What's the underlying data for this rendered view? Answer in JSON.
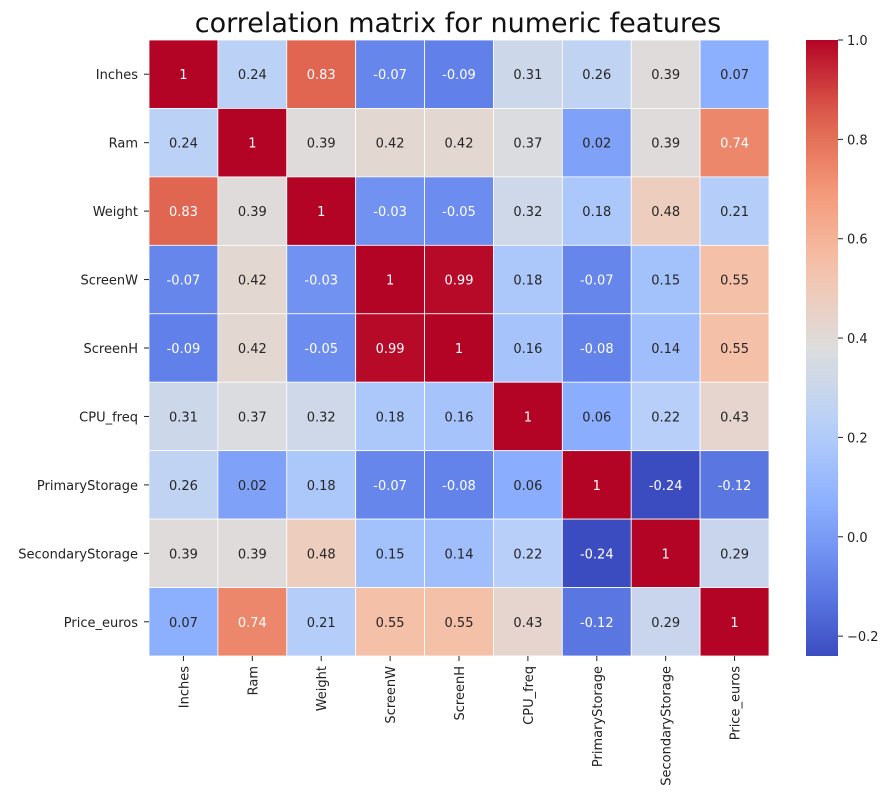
{
  "chart_data": {
    "type": "heatmap",
    "title": "correlation matrix for numeric features",
    "xlabel": "",
    "ylabel": "",
    "colormap": "coolwarm",
    "vmin": -0.24,
    "vmax": 1.0,
    "rows": [
      "Inches",
      "Ram",
      "Weight",
      "ScreenW",
      "ScreenH",
      "CPU_freq",
      "PrimaryStorage",
      "SecondaryStorage",
      "Price_euros"
    ],
    "columns": [
      "Inches",
      "Ram",
      "Weight",
      "ScreenW",
      "ScreenH",
      "CPU_freq",
      "PrimaryStorage",
      "SecondaryStorage",
      "Price_euros"
    ],
    "values": [
      [
        1,
        0.24,
        0.83,
        -0.07,
        -0.09,
        0.31,
        0.26,
        0.39,
        0.07
      ],
      [
        0.24,
        1,
        0.39,
        0.42,
        0.42,
        0.37,
        0.02,
        0.39,
        0.74
      ],
      [
        0.83,
        0.39,
        1,
        -0.03,
        -0.05,
        0.32,
        0.18,
        0.48,
        0.21
      ],
      [
        -0.07,
        0.42,
        -0.03,
        1,
        0.99,
        0.18,
        -0.07,
        0.15,
        0.55
      ],
      [
        -0.09,
        0.42,
        -0.05,
        0.99,
        1,
        0.16,
        -0.08,
        0.14,
        0.55
      ],
      [
        0.31,
        0.37,
        0.32,
        0.18,
        0.16,
        1,
        0.06,
        0.22,
        0.43
      ],
      [
        0.26,
        0.02,
        0.18,
        -0.07,
        -0.08,
        0.06,
        1,
        -0.24,
        -0.12
      ],
      [
        0.39,
        0.39,
        0.48,
        0.15,
        0.14,
        0.22,
        -0.24,
        1,
        0.29
      ],
      [
        0.07,
        0.74,
        0.21,
        0.55,
        0.55,
        0.43,
        -0.12,
        0.29,
        1
      ]
    ],
    "colorbar": {
      "ticks": [
        -0.2,
        0.0,
        0.2,
        0.4,
        0.6,
        0.8,
        1.0
      ],
      "tick_labels": [
        "−0.2",
        "0.0",
        "0.2",
        "0.4",
        "0.6",
        "0.8",
        "1.0"
      ]
    },
    "grid": false
  }
}
